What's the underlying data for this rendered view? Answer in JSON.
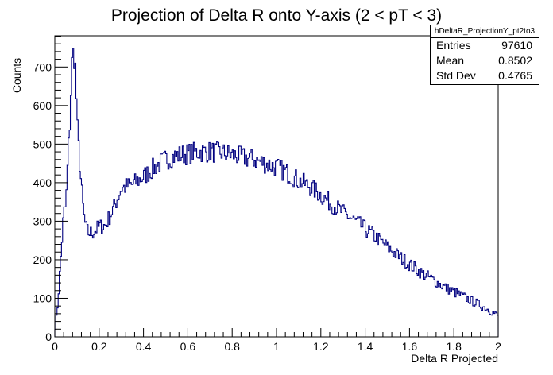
{
  "chart_data": {
    "type": "histogram",
    "title": "Projection of Delta R onto Y-axis (2 < pT < 3)",
    "xlabel": "Delta R Projected",
    "ylabel": "Counts",
    "xlim": [
      0,
      2
    ],
    "ylim": [
      0,
      781
    ],
    "xticks": [
      "0",
      "0.2",
      "0.4",
      "0.6",
      "0.8",
      "1",
      "1.2",
      "1.4",
      "1.6",
      "1.8",
      "2"
    ],
    "yticks": [
      "0",
      "100",
      "200",
      "300",
      "400",
      "500",
      "600",
      "700"
    ],
    "bin_width": 0.005,
    "color": "#000080",
    "keypoints": [
      [
        0.0,
        15
      ],
      [
        0.01,
        60
      ],
      [
        0.02,
        140
      ],
      [
        0.03,
        230
      ],
      [
        0.04,
        320
      ],
      [
        0.05,
        340
      ],
      [
        0.06,
        470
      ],
      [
        0.07,
        580
      ],
      [
        0.075,
        690
      ],
      [
        0.08,
        730
      ],
      [
        0.085,
        740
      ],
      [
        0.09,
        715
      ],
      [
        0.095,
        680
      ],
      [
        0.1,
        560
      ],
      [
        0.11,
        470
      ],
      [
        0.12,
        390
      ],
      [
        0.13,
        320
      ],
      [
        0.14,
        285
      ],
      [
        0.15,
        270
      ],
      [
        0.17,
        270
      ],
      [
        0.2,
        285
      ],
      [
        0.23,
        290
      ],
      [
        0.27,
        340
      ],
      [
        0.3,
        385
      ],
      [
        0.35,
        395
      ],
      [
        0.4,
        415
      ],
      [
        0.45,
        440
      ],
      [
        0.5,
        460
      ],
      [
        0.55,
        470
      ],
      [
        0.6,
        475
      ],
      [
        0.65,
        480
      ],
      [
        0.7,
        480
      ],
      [
        0.75,
        478
      ],
      [
        0.8,
        472
      ],
      [
        0.85,
        465
      ],
      [
        0.9,
        460
      ],
      [
        0.95,
        450
      ],
      [
        1.0,
        440
      ],
      [
        1.05,
        425
      ],
      [
        1.1,
        405
      ],
      [
        1.15,
        390
      ],
      [
        1.2,
        368
      ],
      [
        1.25,
        345
      ],
      [
        1.3,
        322
      ],
      [
        1.35,
        302
      ],
      [
        1.4,
        280
      ],
      [
        1.45,
        258
      ],
      [
        1.5,
        233
      ],
      [
        1.55,
        210
      ],
      [
        1.6,
        188
      ],
      [
        1.65,
        168
      ],
      [
        1.7,
        150
      ],
      [
        1.75,
        132
      ],
      [
        1.8,
        117
      ],
      [
        1.85,
        102
      ],
      [
        1.9,
        88
      ],
      [
        1.95,
        73
      ],
      [
        2.0,
        55
      ]
    ]
  },
  "stats": {
    "name": "hDeltaR_ProjectionY_pt2to3",
    "rows": [
      {
        "label": "Entries",
        "value": "97610"
      },
      {
        "label": "Mean",
        "value": "0.8502"
      },
      {
        "label": "Std Dev",
        "value": "0.4765"
      }
    ]
  }
}
